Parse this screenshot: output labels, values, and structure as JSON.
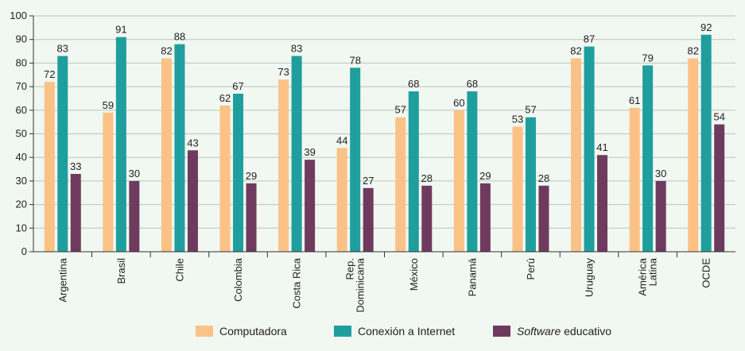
{
  "chart_data": {
    "type": "bar",
    "categories": [
      [
        "Argentina"
      ],
      [
        "Brasil"
      ],
      [
        "Chile"
      ],
      [
        "Colombia"
      ],
      [
        "Costa Rica"
      ],
      [
        "Rep.",
        "Dominicana"
      ],
      [
        "México"
      ],
      [
        "Panamá"
      ],
      [
        "Perú"
      ],
      [
        "Uruguay"
      ],
      [
        "América",
        "Latina"
      ],
      [
        "OCDE"
      ]
    ],
    "series": [
      {
        "name": "Computadora",
        "color": "#fbc287",
        "values": [
          72,
          59,
          82,
          62,
          73,
          44,
          57,
          60,
          53,
          82,
          61,
          82
        ]
      },
      {
        "name": "Conexión a Internet",
        "color": "#1f9e9e",
        "values": [
          83,
          91,
          88,
          67,
          83,
          78,
          68,
          68,
          57,
          87,
          79,
          92
        ]
      },
      {
        "name": "educativo",
        "name_prefix": "Software",
        "color": "#6e3b5e",
        "values": [
          33,
          30,
          43,
          29,
          39,
          27,
          28,
          29,
          28,
          41,
          30,
          54
        ]
      }
    ],
    "yticks": [
      0,
      10,
      20,
      30,
      40,
      50,
      60,
      70,
      80,
      90,
      100
    ],
    "ylim": [
      0,
      100
    ],
    "grid": true,
    "legend_position": "bottom"
  }
}
